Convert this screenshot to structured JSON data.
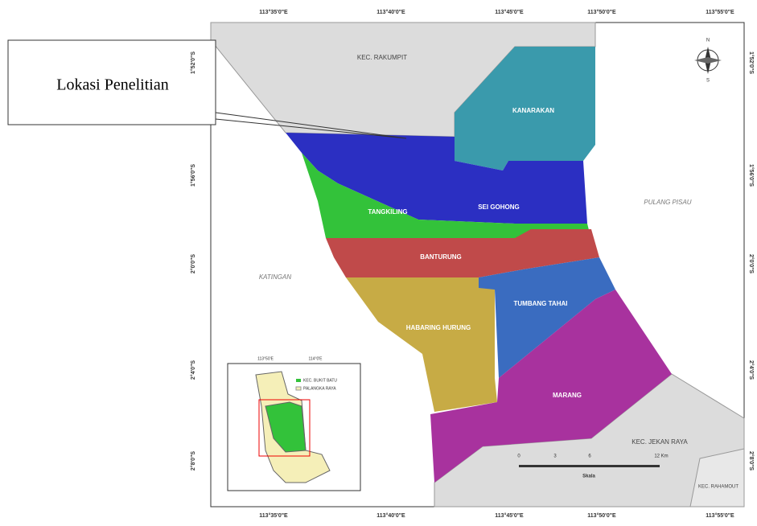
{
  "callout": {
    "label": "Lokasi Penelitian"
  },
  "frame_labels": {
    "top": [
      "113°35'0\"E",
      "113°40'0\"E",
      "113°45'0\"E",
      "113°50'0\"E",
      "113°55'0\"E"
    ],
    "bottom": [
      "113°35'0\"E",
      "113°40'0\"E",
      "113°45'0\"E",
      "113°50'0\"E",
      "113°55'0\"E"
    ],
    "left": [
      "1°52'0\"S",
      "1°56'0\"S",
      "2°0'0\"S",
      "2°4'0\"S",
      "2°8'0\"S"
    ],
    "right": [
      "1°52'0\"S",
      "1°56'0\"S",
      "2°0'0\"S",
      "2°4'0\"S",
      "2°8'0\"S"
    ]
  },
  "regions": [
    "KANARAKAN",
    "SEI GOHONG",
    "TANGKILING",
    "BANTURUNG",
    "HABARING HURUNG",
    "TUMBANG TAHAI",
    "MARANG"
  ],
  "areas": [
    "KEC. RAKUMPIT",
    "PULANG PISAU",
    "KATINGAN",
    "KEC. JEKAN RAYA",
    "KEC. RAHAMOUT"
  ],
  "inset": {
    "legend": [
      "KEC. BUKIT BATU",
      "PALANGKA RAYA"
    ],
    "ticks": [
      "113°50'E",
      "114°0'E"
    ]
  },
  "scale": {
    "ticks": [
      "0",
      "3",
      "6",
      "12 Km"
    ],
    "title": "Skala"
  },
  "compass": {
    "north": "N",
    "south": "S"
  }
}
